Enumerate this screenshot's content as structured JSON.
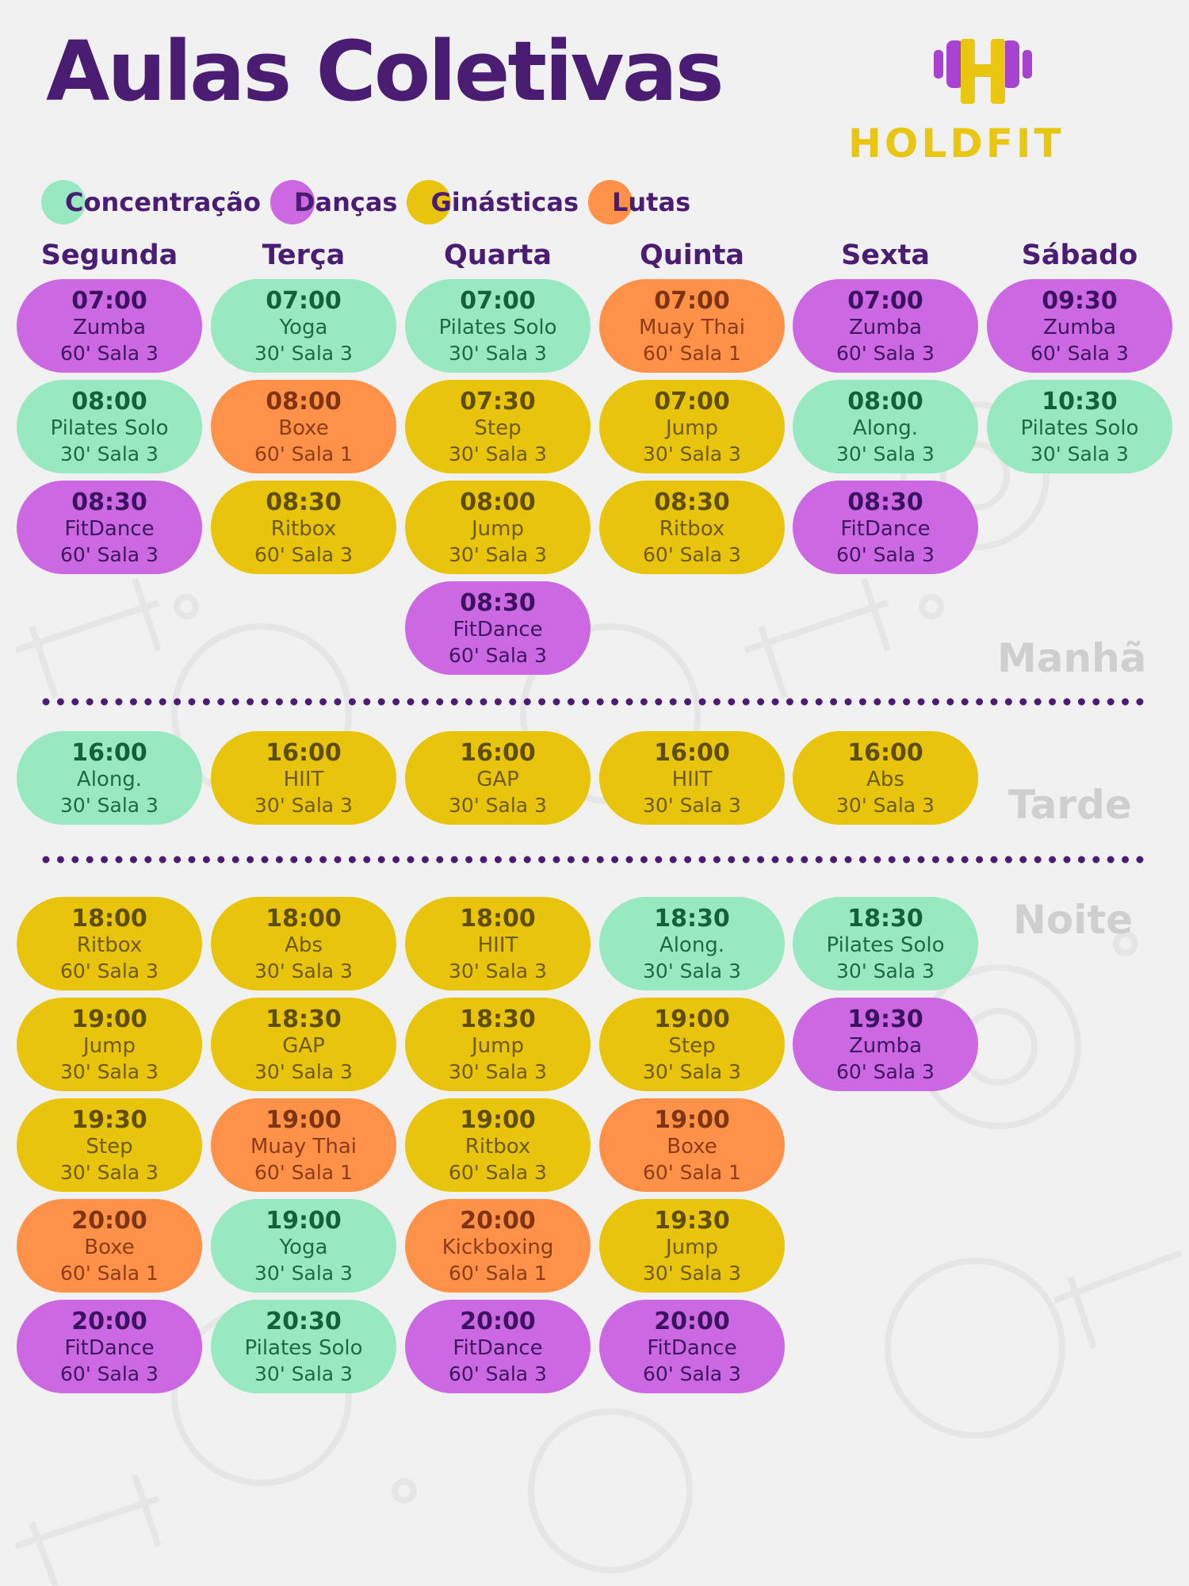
{
  "header": {
    "title": "Aulas Coletivas",
    "logo_text": "HOLDFIT",
    "logo_icon": "dumbbell-h-icon"
  },
  "colors": {
    "title": "#4b1d72",
    "Concentração": "#98e8c1",
    "Danças": "#cb68e2",
    "Ginásticas": "#e8c50c",
    "Lutas": "#ff9148",
    "logo_purple": "#a743d0",
    "logo_yellow": "#e9c612"
  },
  "legend": [
    {
      "label": "Concentração",
      "key": "concentracao"
    },
    {
      "label": "Danças",
      "key": "dancas"
    },
    {
      "label": "Ginásticas",
      "key": "ginasticas"
    },
    {
      "label": "Lutas",
      "key": "lutas"
    }
  ],
  "days": [
    "Segunda",
    "Terça",
    "Quarta",
    "Quinta",
    "Sexta",
    "Sábado"
  ],
  "periods": {
    "morning": "Manhã",
    "afternoon": "Tarde",
    "night": "Noite"
  },
  "schedule": {
    "morning": [
      [
        {
          "time": "07:00",
          "name": "Zumba",
          "detail": "60' Sala 3",
          "cat": "dancas"
        },
        {
          "time": "08:00",
          "name": "Pilates Solo",
          "detail": "30' Sala 3",
          "cat": "concentracao"
        },
        {
          "time": "08:30",
          "name": "FitDance",
          "detail": "60' Sala 3",
          "cat": "dancas"
        }
      ],
      [
        {
          "time": "07:00",
          "name": "Yoga",
          "detail": "30' Sala 3",
          "cat": "concentracao"
        },
        {
          "time": "08:00",
          "name": "Boxe",
          "detail": "60' Sala 1",
          "cat": "lutas"
        },
        {
          "time": "08:30",
          "name": "Ritbox",
          "detail": "60' Sala 3",
          "cat": "ginasticas"
        }
      ],
      [
        {
          "time": "07:00",
          "name": "Pilates Solo",
          "detail": "30' Sala 3",
          "cat": "concentracao"
        },
        {
          "time": "07:30",
          "name": "Step",
          "detail": "30' Sala 3",
          "cat": "ginasticas"
        },
        {
          "time": "08:00",
          "name": "Jump",
          "detail": "30' Sala 3",
          "cat": "ginasticas"
        },
        {
          "time": "08:30",
          "name": "FitDance",
          "detail": "60' Sala 3",
          "cat": "dancas"
        }
      ],
      [
        {
          "time": "07:00",
          "name": "Muay Thai",
          "detail": "60' Sala 1",
          "cat": "lutas"
        },
        {
          "time": "07:00",
          "name": "Jump",
          "detail": "30' Sala 3",
          "cat": "ginasticas"
        },
        {
          "time": "08:30",
          "name": "Ritbox",
          "detail": "60' Sala 3",
          "cat": "ginasticas"
        }
      ],
      [
        {
          "time": "07:00",
          "name": "Zumba",
          "detail": "60' Sala 3",
          "cat": "dancas"
        },
        {
          "time": "08:00",
          "name": "Along.",
          "detail": "30' Sala 3",
          "cat": "concentracao"
        },
        {
          "time": "08:30",
          "name": "FitDance",
          "detail": "60' Sala 3",
          "cat": "dancas"
        }
      ],
      [
        {
          "time": "09:30",
          "name": "Zumba",
          "detail": "60' Sala 3",
          "cat": "dancas"
        },
        {
          "time": "10:30",
          "name": "Pilates Solo",
          "detail": "30' Sala 3",
          "cat": "concentracao"
        }
      ]
    ],
    "afternoon": [
      [
        {
          "time": "16:00",
          "name": "Along.",
          "detail": "30' Sala 3",
          "cat": "concentracao"
        }
      ],
      [
        {
          "time": "16:00",
          "name": "HIIT",
          "detail": "30' Sala 3",
          "cat": "ginasticas"
        }
      ],
      [
        {
          "time": "16:00",
          "name": "GAP",
          "detail": "30' Sala 3",
          "cat": "ginasticas"
        }
      ],
      [
        {
          "time": "16:00",
          "name": "HIIT",
          "detail": "30' Sala 3",
          "cat": "ginasticas"
        }
      ],
      [
        {
          "time": "16:00",
          "name": "Abs",
          "detail": "30' Sala 3",
          "cat": "ginasticas"
        }
      ],
      []
    ],
    "night": [
      [
        {
          "time": "18:00",
          "name": "Ritbox",
          "detail": "60' Sala 3",
          "cat": "ginasticas"
        },
        {
          "time": "19:00",
          "name": "Jump",
          "detail": "30' Sala 3",
          "cat": "ginasticas"
        },
        {
          "time": "19:30",
          "name": "Step",
          "detail": "30' Sala 3",
          "cat": "ginasticas"
        },
        {
          "time": "20:00",
          "name": "Boxe",
          "detail": "60' Sala 1",
          "cat": "lutas"
        },
        {
          "time": "20:00",
          "name": "FitDance",
          "detail": "60' Sala 3",
          "cat": "dancas"
        }
      ],
      [
        {
          "time": "18:00",
          "name": "Abs",
          "detail": "30' Sala 3",
          "cat": "ginasticas"
        },
        {
          "time": "18:30",
          "name": "GAP",
          "detail": "30' Sala 3",
          "cat": "ginasticas"
        },
        {
          "time": "19:00",
          "name": "Muay Thai",
          "detail": "60' Sala 1",
          "cat": "lutas"
        },
        {
          "time": "19:00",
          "name": "Yoga",
          "detail": "30' Sala 3",
          "cat": "concentracao"
        },
        {
          "time": "20:30",
          "name": "Pilates Solo",
          "detail": "30' Sala 3",
          "cat": "concentracao"
        }
      ],
      [
        {
          "time": "18:00",
          "name": "HIIT",
          "detail": "30' Sala 3",
          "cat": "ginasticas"
        },
        {
          "time": "18:30",
          "name": "Jump",
          "detail": "30' Sala 3",
          "cat": "ginasticas"
        },
        {
          "time": "19:00",
          "name": "Ritbox",
          "detail": "60' Sala 3",
          "cat": "ginasticas"
        },
        {
          "time": "20:00",
          "name": "Kickboxing",
          "detail": "60' Sala 1",
          "cat": "lutas"
        },
        {
          "time": "20:00",
          "name": "FitDance",
          "detail": "60' Sala 3",
          "cat": "dancas"
        }
      ],
      [
        {
          "time": "18:30",
          "name": "Along.",
          "detail": "30' Sala 3",
          "cat": "concentracao"
        },
        {
          "time": "19:00",
          "name": "Step",
          "detail": "30' Sala 3",
          "cat": "ginasticas"
        },
        {
          "time": "19:00",
          "name": "Boxe",
          "detail": "60' Sala 1",
          "cat": "lutas"
        },
        {
          "time": "19:30",
          "name": "Jump",
          "detail": "30' Sala 3",
          "cat": "ginasticas"
        },
        {
          "time": "20:00",
          "name": "FitDance",
          "detail": "60' Sala 3",
          "cat": "dancas"
        }
      ],
      [
        {
          "time": "18:30",
          "name": "Pilates Solo",
          "detail": "30' Sala 3",
          "cat": "concentracao"
        },
        {
          "time": "19:30",
          "name": "Zumba",
          "detail": "60' Sala 3",
          "cat": "dancas"
        }
      ],
      []
    ]
  }
}
